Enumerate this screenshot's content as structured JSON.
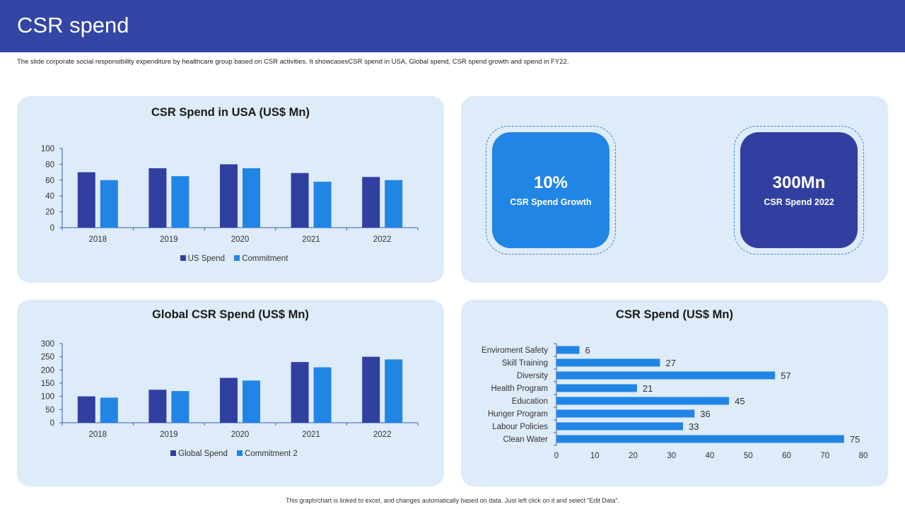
{
  "page": {
    "title": "CSR spend",
    "subtitle": "The slide corporate social responsibility expenditure by healthcare group based on CSR activities. It showcasesCSR spend in USA, Global spend, CSR spend growth and spend in FY22.",
    "footer": "This graph/chart is linked to excel, and changes automatically based on data. Just left click on it and select “Edit Data”."
  },
  "colors": {
    "header": "#3346a5",
    "dark_series": "#3140a0",
    "light_series": "#2185e6",
    "panel_bg": "#deebf8"
  },
  "kpis": [
    {
      "value": "10%",
      "label": "CSR Spend Growth"
    },
    {
      "value": "300Mn",
      "label": "CSR Spend 2022"
    }
  ],
  "chart_data": [
    {
      "type": "bar",
      "title": "CSR Spend in USA (US$ Mn)",
      "categories": [
        "2018",
        "2019",
        "2020",
        "2021",
        "2022"
      ],
      "series": [
        {
          "name": "US Spend",
          "values": [
            70,
            75,
            80,
            69,
            64
          ]
        },
        {
          "name": "Commitment",
          "values": [
            60,
            65,
            75,
            58,
            60
          ]
        }
      ],
      "ylim": [
        0,
        100
      ],
      "yticks": [
        0,
        20,
        40,
        60,
        80,
        100
      ],
      "legend": "bottom"
    },
    {
      "type": "bar",
      "title": "Global CSR Spend (US$ Mn)",
      "categories": [
        "2018",
        "2019",
        "2020",
        "2021",
        "2022"
      ],
      "series": [
        {
          "name": "Global Spend",
          "values": [
            100,
            125,
            170,
            230,
            250
          ]
        },
        {
          "name": "Commitment 2",
          "values": [
            95,
            120,
            160,
            210,
            240
          ]
        }
      ],
      "ylim": [
        0,
        300
      ],
      "yticks": [
        0,
        50,
        100,
        150,
        200,
        250,
        300
      ],
      "legend": "bottom"
    },
    {
      "type": "bar",
      "orientation": "horizontal",
      "title": "CSR Spend (US$ Mn)",
      "categories": [
        "Enviroment Safety",
        "Skill Training",
        "Diversity",
        "Health Program",
        "Education",
        "Hunger Program",
        "Labour Policies",
        "Clean Water"
      ],
      "values": [
        6,
        27,
        57,
        21,
        45,
        36,
        33,
        75
      ],
      "xlim": [
        0,
        80
      ],
      "xticks": [
        0,
        10,
        20,
        30,
        40,
        50,
        60,
        70,
        80
      ]
    }
  ]
}
